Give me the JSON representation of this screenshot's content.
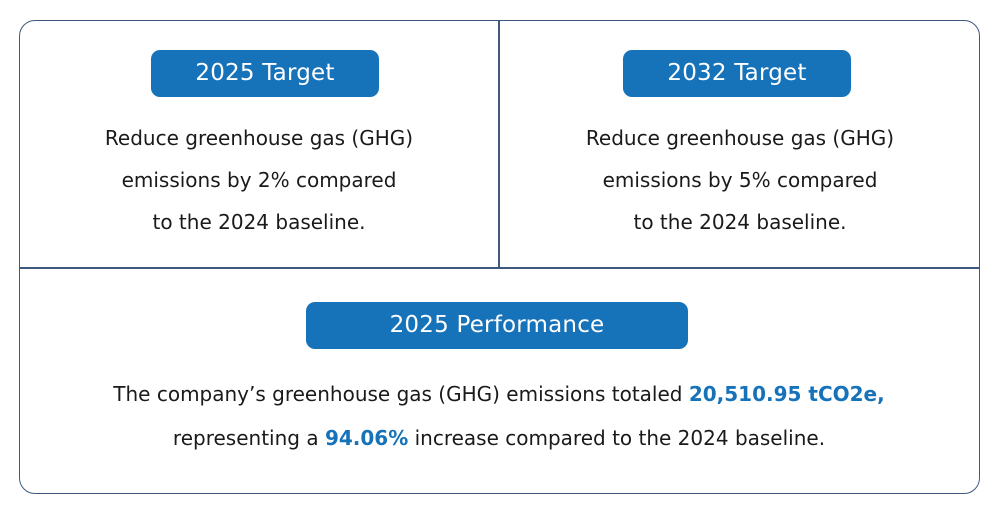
{
  "colors": {
    "accent": "#1672b9",
    "border": "#3d5a7e",
    "text": "#1a1a1a"
  },
  "target_2025": {
    "heading": "2025 Target",
    "lines": [
      "Reduce greenhouse gas (GHG)",
      "emissions by 2% compared",
      "to the 2024 baseline."
    ]
  },
  "target_2032": {
    "heading": "2032 Target",
    "lines": [
      "Reduce greenhouse gas (GHG)",
      "emissions by 5% compared",
      "to the 2024 baseline."
    ]
  },
  "performance_2025": {
    "heading": "2025 Performance",
    "line1_text": "The company’s greenhouse gas (GHG) emissions totaled ",
    "line1_highlight": "20,510.95 tCO2e,",
    "line2_prefix": "representing a ",
    "line2_highlight": "94.06%",
    "line2_suffix": " increase compared to the 2024 baseline."
  }
}
